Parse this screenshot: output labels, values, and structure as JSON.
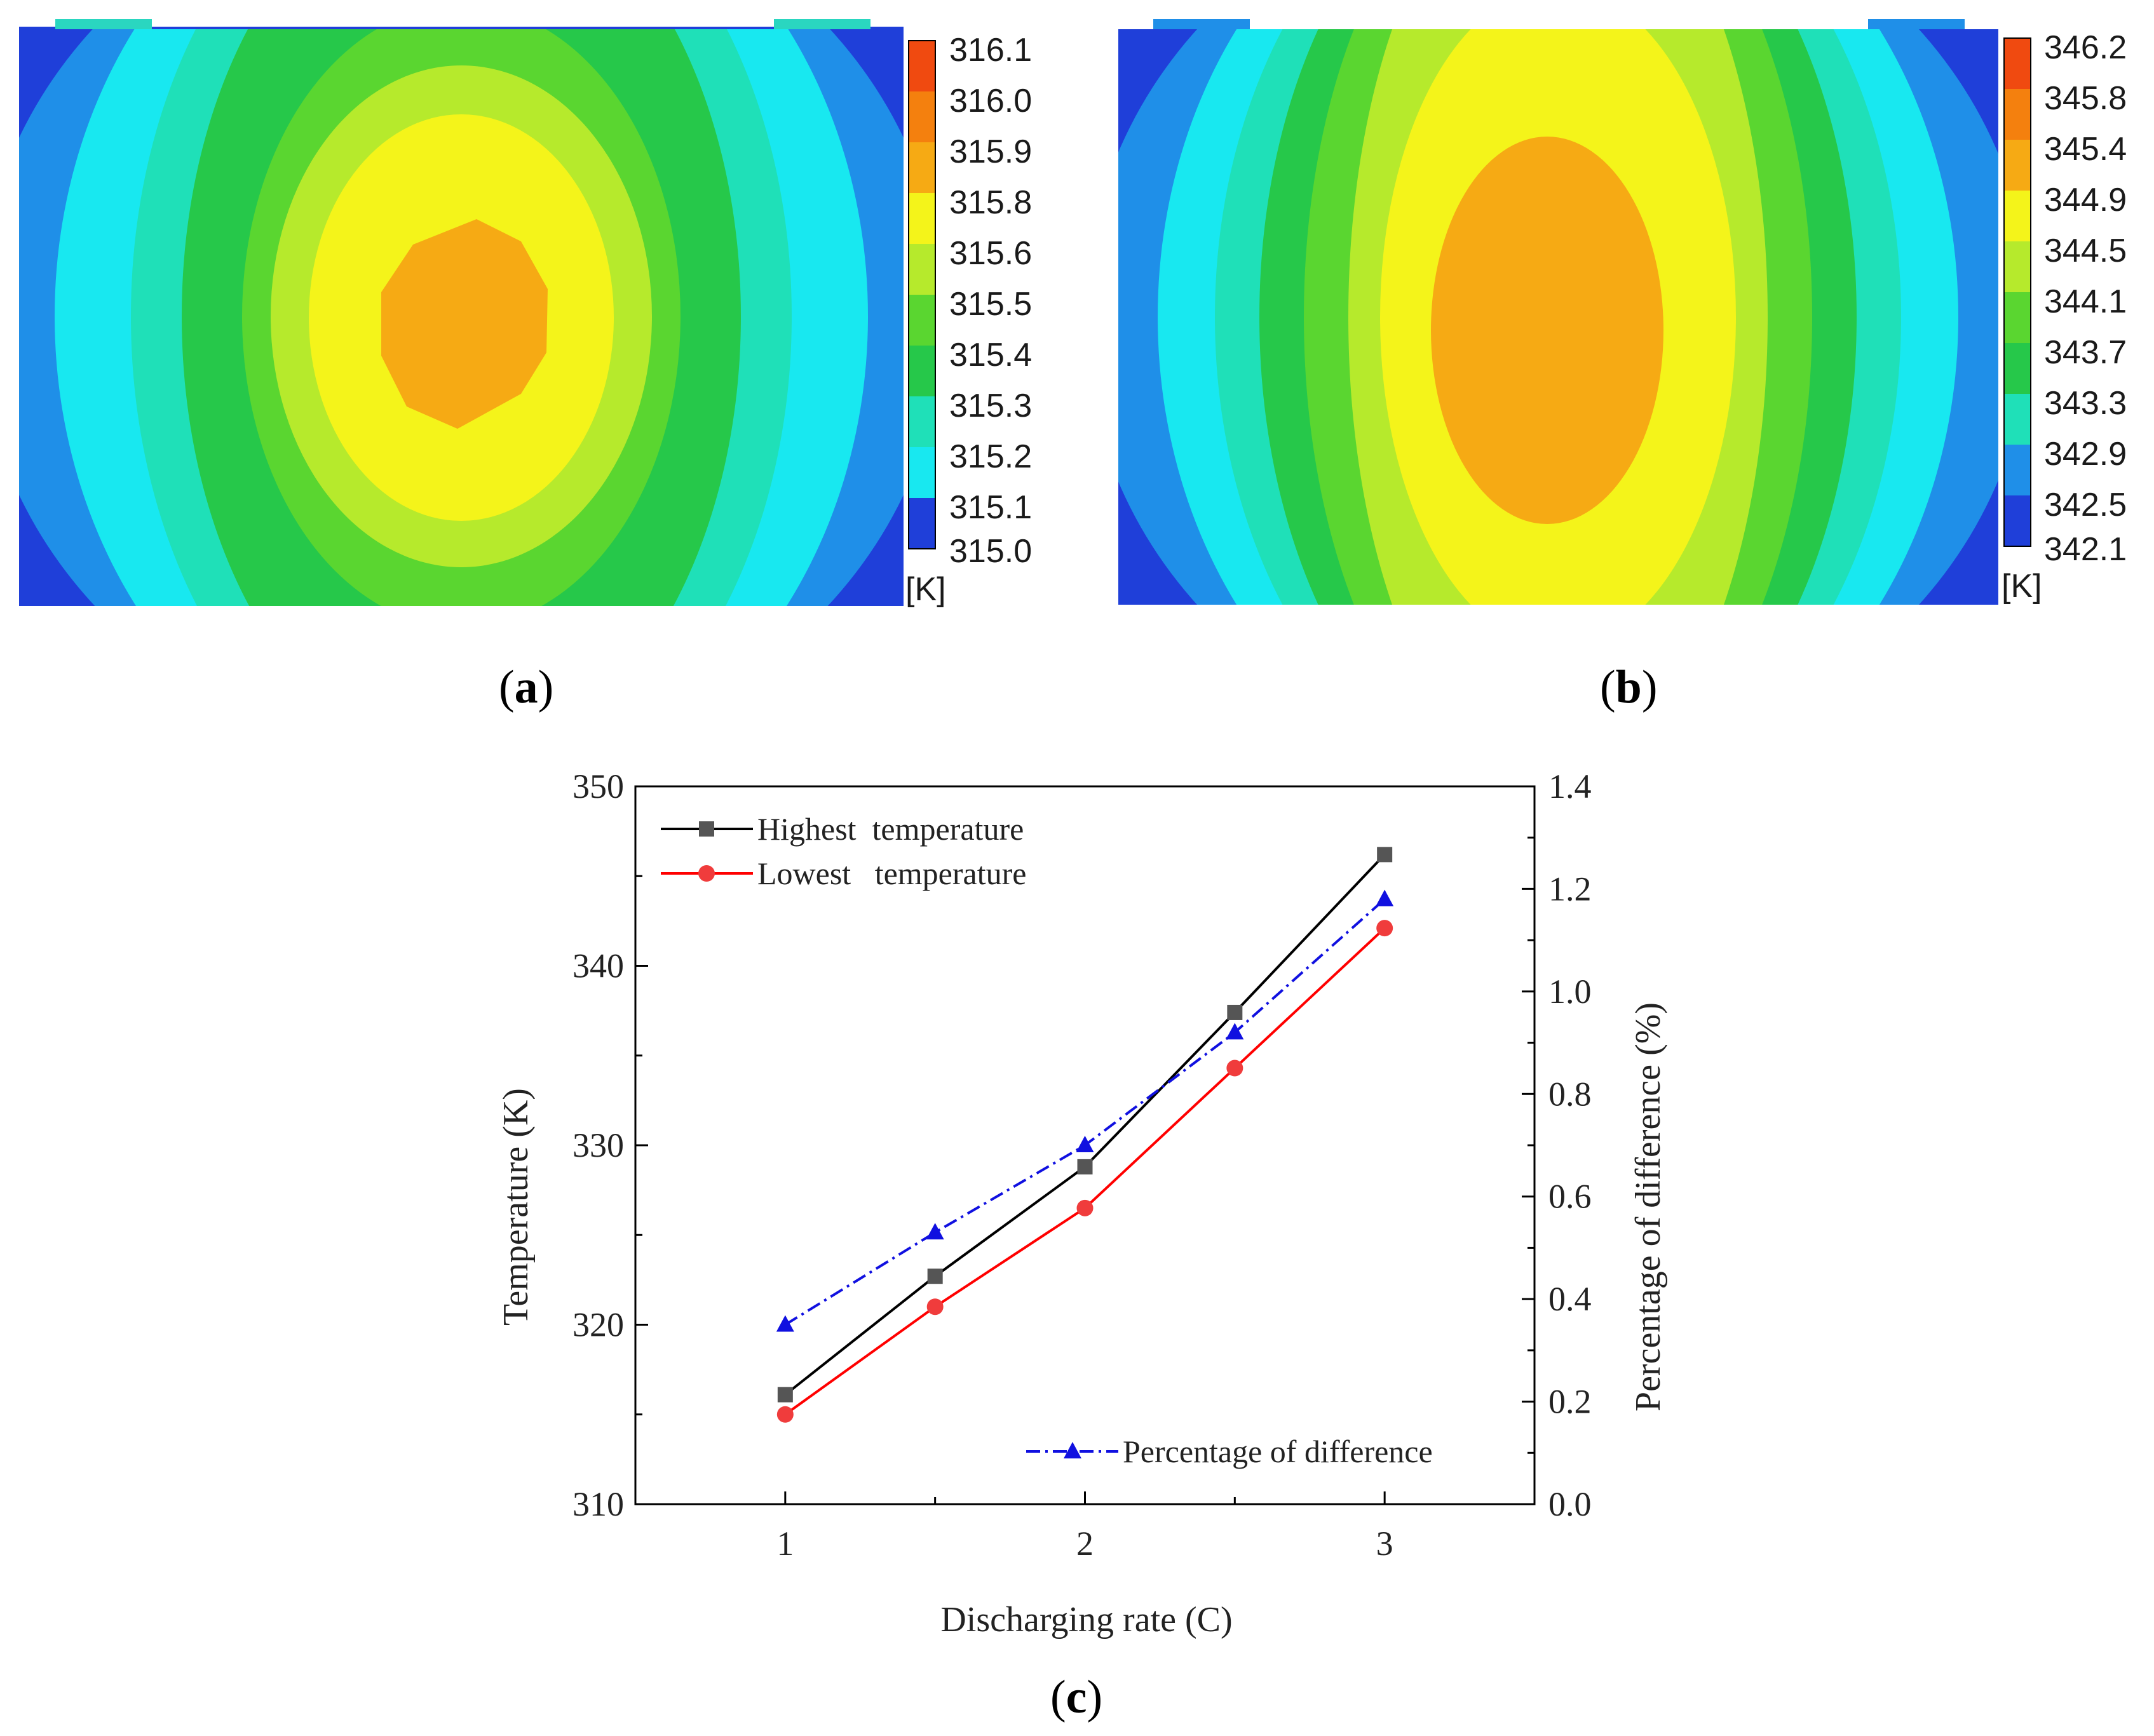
{
  "panels": {
    "a": {
      "caption": "a",
      "colorbar": {
        "labels": [
          "316.1",
          "316.0",
          "315.9",
          "315.8",
          "315.6",
          "315.5",
          "315.4",
          "315.3",
          "315.2",
          "315.1",
          "315.0"
        ],
        "unit": "[K]"
      }
    },
    "b": {
      "caption": "b",
      "colorbar": {
        "labels": [
          "346.2",
          "345.8",
          "345.4",
          "344.9",
          "344.5",
          "344.1",
          "343.7",
          "343.3",
          "342.9",
          "342.5",
          "342.1"
        ],
        "unit": "[K]"
      }
    },
    "c": {
      "caption": "c"
    }
  },
  "contour_colors": [
    "#1f3fd9",
    "#1f8fe8",
    "#18e8f0",
    "#1fe0b8",
    "#26c84a",
    "#5ad630",
    "#b6ea2c",
    "#f4f41a",
    "#f6aa14",
    "#f4800e",
    "#f04a10"
  ],
  "chart_data": {
    "type": "line",
    "title": "",
    "xlabel": "Discharging rate (C)",
    "ylabel": "Temperature (K)",
    "y2label": "Percentage of difference (%)",
    "xlim": [
      0.5,
      3.5
    ],
    "ylim": [
      310,
      350
    ],
    "y2lim": [
      0.0,
      1.4
    ],
    "x_ticks": [
      "1",
      "2",
      "3"
    ],
    "y_ticks": [
      "310",
      "320",
      "330",
      "340",
      "350"
    ],
    "y2_ticks": [
      "0.0",
      "0.2",
      "0.4",
      "0.6",
      "0.8",
      "1.0",
      "1.2",
      "1.4"
    ],
    "x": [
      1,
      1.5,
      2,
      2.5,
      3
    ],
    "series": [
      {
        "name": "Highest  temperature",
        "axis": "left",
        "color": "#000000",
        "marker": "square",
        "marker_color": "#555555",
        "dash": "solid",
        "values": [
          316.1,
          322.7,
          328.8,
          337.4,
          346.2
        ]
      },
      {
        "name": "Lowest   temperature",
        "axis": "left",
        "color": "#ff0000",
        "marker": "circle",
        "marker_color": "#f03c3c",
        "dash": "solid",
        "values": [
          315.0,
          321.0,
          326.5,
          334.3,
          342.1
        ]
      },
      {
        "name": "Percentage of difference",
        "axis": "right",
        "color": "#1010e0",
        "marker": "triangle",
        "marker_color": "#1010e0",
        "dash": "dashdot",
        "values": [
          0.35,
          0.53,
          0.7,
          0.92,
          1.18
        ]
      }
    ],
    "legend": [
      "top-left",
      "bottom-right"
    ]
  }
}
